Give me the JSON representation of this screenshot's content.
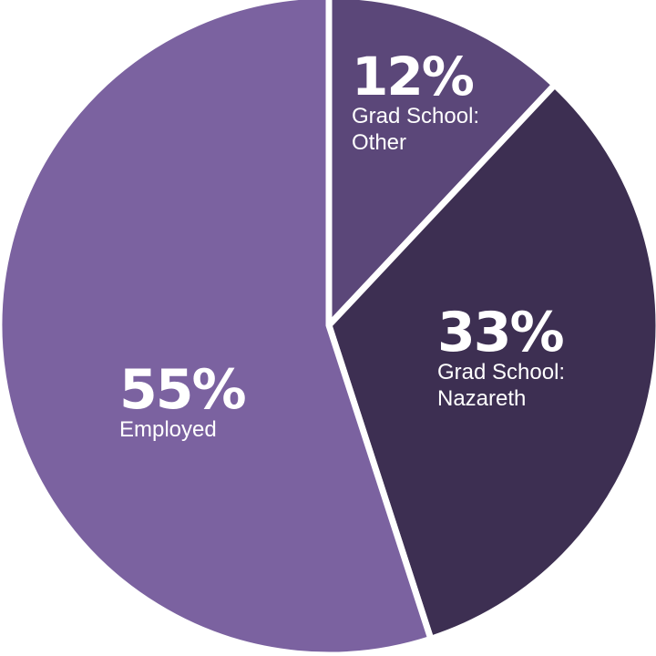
{
  "chart_data": {
    "type": "pie",
    "slices": [
      {
        "label": "Grad School: Other",
        "label_lines": [
          "Grad School:",
          "Other"
        ],
        "value": 12,
        "display": "12%",
        "color": "#5b4779"
      },
      {
        "label": "Grad School: Nazareth",
        "label_lines": [
          "Grad School:",
          "Nazareth"
        ],
        "value": 33,
        "display": "33%",
        "color": "#3d2f52"
      },
      {
        "label": "Employed",
        "label_lines": [
          "Employed"
        ],
        "value": 55,
        "display": "55%",
        "color": "#7b62a0"
      }
    ],
    "start_angle_deg": 0,
    "direction": "clockwise"
  }
}
